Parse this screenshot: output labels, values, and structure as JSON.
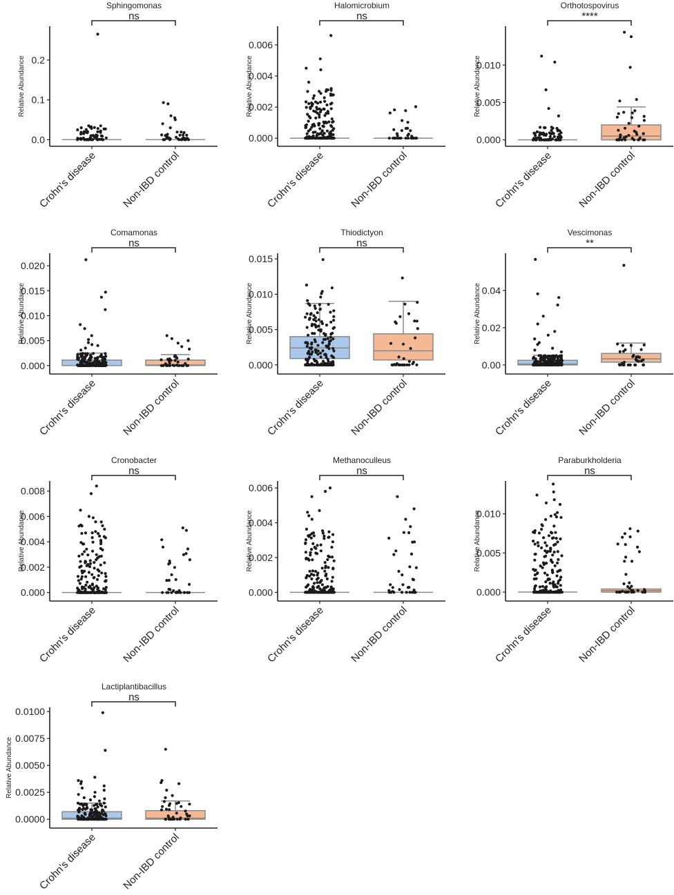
{
  "figure": {
    "group_labels": [
      "Crohn's disease",
      "Non-IBD control"
    ],
    "y_axis_label": "Relative Abundance",
    "colors": {
      "crohns_box": "#a9c8ec",
      "control_box": "#f5b995",
      "whisker": "#888888",
      "point": "#1a1a1a",
      "axis": "#222222"
    }
  },
  "chart_data": [
    {
      "type": "box",
      "title": "Sphingomonas",
      "significance": "ns",
      "ylabel": "Relative Abundance",
      "categories": [
        "Crohn's disease",
        "Non-IBD control"
      ],
      "ylim": [
        -0.008,
        0.285
      ],
      "yticks": [
        0.0,
        0.1,
        0.2
      ],
      "ytick_labels": [
        "0.0",
        "0.1",
        "0.2"
      ],
      "boxes": [
        {
          "q1": 0,
          "median": 0,
          "q3": 0,
          "whisker_low": 0,
          "whisker_high": 0
        },
        {
          "q1": 0,
          "median": 0,
          "q3": 0,
          "whisker_low": 0,
          "whisker_high": 0
        }
      ],
      "points": [
        {
          "n": 60,
          "max": 0.035,
          "outliers": [
            0.265,
            0.02,
            0.015,
            0.01
          ]
        },
        {
          "n": 34,
          "max": 0.02,
          "outliers": [
            0.093,
            0.09,
            0.06,
            0.055,
            0.05,
            0.04,
            0.03
          ]
        }
      ]
    },
    {
      "type": "box",
      "title": "Halomicrobium",
      "significance": "ns",
      "ylabel": "Relative Abundance",
      "categories": [
        "Crohn's disease",
        "Non-IBD control"
      ],
      "ylim": [
        -0.0003,
        0.0072
      ],
      "yticks": [
        0.0,
        0.002,
        0.004,
        0.006
      ],
      "ytick_labels": [
        "0.000",
        "0.002",
        "0.004",
        "0.006"
      ],
      "boxes": [
        {
          "q1": 0,
          "median": 0,
          "q3": 0,
          "whisker_low": 0,
          "whisker_high": 0
        },
        {
          "q1": 0,
          "median": 0,
          "q3": 0,
          "whisker_low": 0,
          "whisker_high": 0
        }
      ],
      "points": [
        {
          "n": 190,
          "max": 0.0032,
          "outliers": [
            0.0066,
            0.0051,
            0.0045,
            0.0044,
            0.0036
          ]
        },
        {
          "n": 34,
          "max": 0.0021,
          "outliers": []
        }
      ]
    },
    {
      "type": "box",
      "title": "Orthotospovirus",
      "significance": "****",
      "ylabel": "Relative Abundance",
      "categories": [
        "Crohn's disease",
        "Non-IBD control"
      ],
      "ylim": [
        -0.0004,
        0.0152
      ],
      "yticks": [
        0.0,
        0.005,
        0.01
      ],
      "ytick_labels": [
        "0.000",
        "0.005",
        "0.010"
      ],
      "boxes": [
        {
          "q1": 0,
          "median": 0,
          "q3": 0,
          "whisker_low": 0,
          "whisker_high": 0
        },
        {
          "q1": 0,
          "median": 0.0005,
          "q3": 0.002,
          "whisker_low": 0,
          "whisker_high": 0.0044
        }
      ],
      "points": [
        {
          "n": 80,
          "max": 0.0018,
          "outliers": [
            0.0112,
            0.0104,
            0.0067,
            0.0042,
            0.0032
          ]
        },
        {
          "n": 34,
          "max": 0.0044,
          "outliers": [
            0.0144,
            0.0138,
            0.0097,
            0.0054,
            0.0052
          ]
        }
      ]
    },
    {
      "type": "box",
      "title": "Comamonas",
      "significance": "ns",
      "ylabel": "Relative Abundance",
      "categories": [
        "Crohn's disease",
        "Non-IBD control"
      ],
      "ylim": [
        -0.001,
        0.0225
      ],
      "yticks": [
        0.0,
        0.005,
        0.01,
        0.015,
        0.02
      ],
      "ytick_labels": [
        "0.000",
        "0.005",
        "0.010",
        "0.015",
        "0.020"
      ],
      "boxes": [
        {
          "q1": 0,
          "median": 0,
          "q3": 0.0011,
          "whisker_low": 0,
          "whisker_high": 0.0025
        },
        {
          "q1": 0,
          "median": 0.0001,
          "q3": 0.0011,
          "whisker_low": 0,
          "whisker_high": 0.0022
        }
      ],
      "points": [
        {
          "n": 190,
          "max": 0.0025,
          "outliers": [
            0.0212,
            0.0147,
            0.0137,
            0.0112,
            0.0082,
            0.0074,
            0.006,
            0.0052,
            0.0046,
            0.0042,
            0.004,
            0.0035,
            0.0031
          ]
        },
        {
          "n": 34,
          "max": 0.0022,
          "outliers": [
            0.006,
            0.0054,
            0.005,
            0.0045,
            0.0038,
            0.0033
          ]
        }
      ]
    },
    {
      "type": "box",
      "title": "Thiodictyon",
      "significance": "ns",
      "ylabel": "Relative Abundance",
      "categories": [
        "Crohn's disease",
        "Non-IBD control"
      ],
      "ylim": [
        -0.0008,
        0.0158
      ],
      "yticks": [
        0.0,
        0.005,
        0.01,
        0.015
      ],
      "ytick_labels": [
        "0.000",
        "0.005",
        "0.010",
        "0.015"
      ],
      "boxes": [
        {
          "q1": 0.0009,
          "median": 0.0024,
          "q3": 0.004,
          "whisker_low": 0,
          "whisker_high": 0.0087
        },
        {
          "q1": 0.0007,
          "median": 0.002,
          "q3": 0.0044,
          "whisker_low": 0,
          "whisker_high": 0.009
        }
      ],
      "points": [
        {
          "n": 190,
          "max": 0.0087,
          "outliers": [
            0.0149,
            0.0113,
            0.0109,
            0.0104,
            0.0101,
            0.0096,
            0.0091
          ]
        },
        {
          "n": 34,
          "max": 0.009,
          "outliers": [
            0.0123
          ]
        }
      ]
    },
    {
      "type": "box",
      "title": "Vescimonas",
      "significance": "**",
      "ylabel": "Relative Abundance",
      "categories": [
        "Crohn's disease",
        "Non-IBD control"
      ],
      "ylim": [
        -0.003,
        0.06
      ],
      "yticks": [
        0.0,
        0.02,
        0.04
      ],
      "ytick_labels": [
        "0.00",
        "0.02",
        "0.04"
      ],
      "boxes": [
        {
          "q1": 0,
          "median": 0.0005,
          "q3": 0.0025,
          "whisker_low": 0,
          "whisker_high": 0.0052
        },
        {
          "q1": 0.0015,
          "median": 0.0033,
          "q3": 0.0062,
          "whisker_low": 0,
          "whisker_high": 0.0118
        }
      ],
      "points": [
        {
          "n": 190,
          "max": 0.0052,
          "outliers": [
            0.0567,
            0.0382,
            0.0362,
            0.0322,
            0.0262,
            0.022,
            0.018,
            0.016,
            0.014,
            0.012,
            0.011,
            0.009,
            0.008,
            0.007
          ]
        },
        {
          "n": 34,
          "max": 0.0118,
          "outliers": [
            0.0535
          ]
        }
      ]
    },
    {
      "type": "box",
      "title": "Cronobacter",
      "significance": "ns",
      "ylabel": "Relative Abundance",
      "categories": [
        "Crohn's disease",
        "Non-IBD control"
      ],
      "ylim": [
        -0.0004,
        0.0088
      ],
      "yticks": [
        0.0,
        0.002,
        0.004,
        0.006,
        0.008
      ],
      "ytick_labels": [
        "0.000",
        "0.002",
        "0.004",
        "0.006",
        "0.008"
      ],
      "boxes": [
        {
          "q1": 0,
          "median": 0,
          "q3": 0,
          "whisker_low": 0,
          "whisker_high": 0
        },
        {
          "q1": 0,
          "median": 0,
          "q3": 0,
          "whisker_low": 0,
          "whisker_high": 0
        }
      ],
      "points": [
        {
          "n": 190,
          "max": 0.0056,
          "outliers": [
            0.0084,
            0.0078,
            0.0065,
            0.006,
            0.0059
          ]
        },
        {
          "n": 34,
          "max": 0.0042,
          "outliers": [
            0.0051,
            0.0049
          ]
        }
      ]
    },
    {
      "type": "box",
      "title": "Methanoculleus",
      "significance": "ns",
      "ylabel": "Relative Abundance",
      "categories": [
        "Crohn's disease",
        "Non-IBD control"
      ],
      "ylim": [
        -0.0003,
        0.0064
      ],
      "yticks": [
        0.0,
        0.002,
        0.004,
        0.006
      ],
      "ytick_labels": [
        "0.000",
        "0.002",
        "0.004",
        "0.006"
      ],
      "boxes": [
        {
          "q1": 0,
          "median": 0,
          "q3": 0,
          "whisker_low": 0,
          "whisker_high": 0
        },
        {
          "q1": 0,
          "median": 0,
          "q3": 0,
          "whisker_low": 0,
          "whisker_high": 0
        }
      ],
      "points": [
        {
          "n": 190,
          "max": 0.0037,
          "outliers": [
            0.006,
            0.0058,
            0.0055,
            0.0047,
            0.0046,
            0.0044,
            0.0042
          ]
        },
        {
          "n": 34,
          "max": 0.0038,
          "outliers": [
            0.0055,
            0.0048,
            0.0042
          ]
        }
      ]
    },
    {
      "type": "box",
      "title": "Paraburkholderia",
      "significance": "ns",
      "ylabel": "Relative Abundance",
      "categories": [
        "Crohn's disease",
        "Non-IBD control"
      ],
      "ylim": [
        -0.0007,
        0.0142
      ],
      "yticks": [
        0.0,
        0.005,
        0.01
      ],
      "ytick_labels": [
        "0.000",
        "0.005",
        "0.010"
      ],
      "boxes": [
        {
          "q1": 0,
          "median": 0,
          "q3": 0,
          "whisker_low": 0,
          "whisker_high": 0
        },
        {
          "q1": 0,
          "median": 0.0002,
          "q3": 0.0004,
          "whisker_low": 0,
          "whisker_high": 0.0004
        }
      ],
      "points": [
        {
          "n": 190,
          "max": 0.0105,
          "outliers": [
            0.0138,
            0.0128,
            0.0124,
            0.0118,
            0.0114,
            0.0112
          ]
        },
        {
          "n": 34,
          "max": 0.0075,
          "outliers": [
            0.0081,
            0.0078
          ]
        }
      ]
    },
    {
      "type": "box",
      "title": "Lactiplantibacillus",
      "significance": "ns",
      "ylabel": "Relative Abundance",
      "categories": [
        "Crohn's disease",
        "Non-IBD control"
      ],
      "ylim": [
        -0.0005,
        0.0104
      ],
      "yticks": [
        0.0,
        0.0025,
        0.005,
        0.0075,
        0.01
      ],
      "ytick_labels": [
        "0.0000",
        "0.0025",
        "0.0050",
        "0.0075",
        "0.0100"
      ],
      "boxes": [
        {
          "q1": 0,
          "median": 0.0001,
          "q3": 0.0007,
          "whisker_low": 0,
          "whisker_high": 0.0015
        },
        {
          "q1": 0,
          "median": 0.0001,
          "q3": 0.0008,
          "whisker_low": 0,
          "whisker_high": 0.0017
        }
      ],
      "points": [
        {
          "n": 150,
          "max": 0.0015,
          "outliers": [
            0.0099,
            0.0064,
            0.0039,
            0.0036,
            0.0035,
            0.0033,
            0.0031,
            0.0029,
            0.0027,
            0.0025,
            0.0023,
            0.0021,
            0.002,
            0.0019,
            0.0018,
            0.0017
          ]
        },
        {
          "n": 34,
          "max": 0.0017,
          "outliers": [
            0.0065,
            0.0036,
            0.0034,
            0.0033,
            0.0027,
            0.0022,
            0.002
          ]
        }
      ]
    }
  ]
}
